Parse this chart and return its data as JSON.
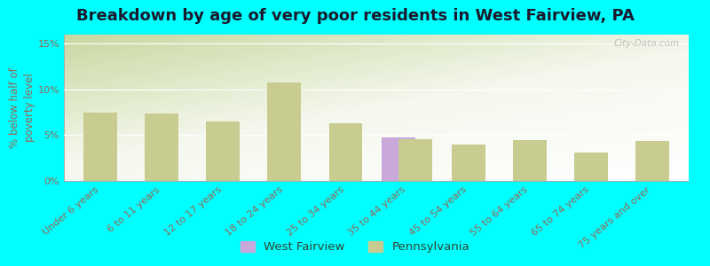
{
  "title": "Breakdown by age of very poor residents in West Fairview, PA",
  "ylabel": "% below half of\npoverty level",
  "background_color": "#00ffff",
  "plot_bg_topleft": "#d8e8c0",
  "plot_bg_topright": "#e8f0e0",
  "plot_bg_bottomleft": "#f0f5e8",
  "plot_bg_bottomright": "#f8faf4",
  "categories": [
    "Under 6 years",
    "6 to 11 years",
    "12 to 17 years",
    "18 to 24 years",
    "25 to 34 years",
    "35 to 44 years",
    "45 to 54 years",
    "55 to 64 years",
    "65 to 74 years",
    "75 years and over"
  ],
  "west_fairview_values": [
    null,
    null,
    null,
    null,
    null,
    4.8,
    null,
    null,
    null,
    null
  ],
  "pennsylvania_values": [
    7.5,
    7.4,
    6.5,
    10.8,
    6.3,
    4.6,
    4.0,
    4.5,
    3.1,
    4.4
  ],
  "wf_color": "#c9a8dc",
  "pa_color": "#c8cc90",
  "bar_width": 0.55,
  "ylim": [
    0,
    16
  ],
  "yticks": [
    0,
    5,
    10,
    15
  ],
  "ytick_labels": [
    "0%",
    "5%",
    "10%",
    "15%"
  ],
  "watermark": "City-Data.com",
  "tick_color": "#996655",
  "label_color": "#334433",
  "title_fontsize": 13,
  "label_fontsize": 8.5,
  "tick_fontsize": 8
}
